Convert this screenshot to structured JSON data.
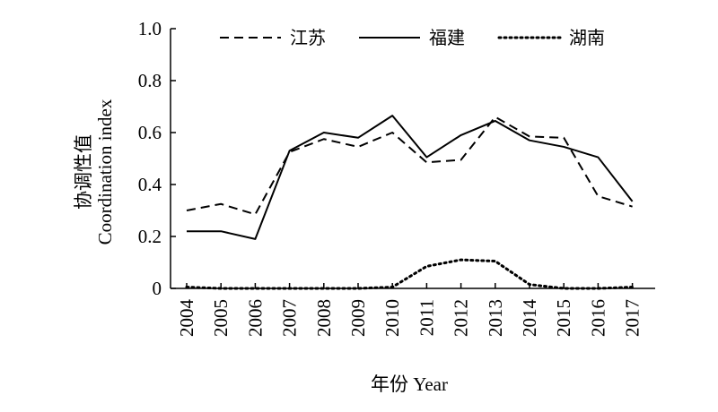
{
  "chart_data": {
    "type": "line",
    "title": "",
    "xlabel": "年份 Year",
    "ylabel_lines": [
      "协调性值",
      "Coordination index"
    ],
    "categories": [
      "2004",
      "2005",
      "2006",
      "2007",
      "2008",
      "2009",
      "2010",
      "2011",
      "2012",
      "2013",
      "2014",
      "2015",
      "2016",
      "2017"
    ],
    "ylim": [
      0,
      1.0
    ],
    "yticks": [
      0,
      0.2,
      0.4,
      0.6,
      0.8,
      1.0
    ],
    "ytick_labels": [
      "0",
      "0.2",
      "0.4",
      "0.6",
      "0.8",
      "1.0"
    ],
    "grid": false,
    "legend_position": "top",
    "series": [
      {
        "name": "江苏",
        "line_style": "dashed",
        "color": "#000000",
        "values": [
          0.3,
          0.325,
          0.285,
          0.525,
          0.575,
          0.545,
          0.6,
          0.485,
          0.495,
          0.66,
          0.585,
          0.58,
          0.355,
          0.315
        ]
      },
      {
        "name": "福建",
        "line_style": "solid",
        "color": "#000000",
        "values": [
          0.22,
          0.22,
          0.19,
          0.53,
          0.6,
          0.58,
          0.665,
          0.505,
          0.59,
          0.645,
          0.57,
          0.545,
          0.505,
          0.335
        ]
      },
      {
        "name": "湖南",
        "line_style": "dotted",
        "color": "#000000",
        "values": [
          0.005,
          0.0,
          0.0,
          0.0,
          0.0,
          0.0,
          0.005,
          0.085,
          0.11,
          0.105,
          0.015,
          0.0,
          0.0,
          0.005
        ]
      }
    ]
  }
}
